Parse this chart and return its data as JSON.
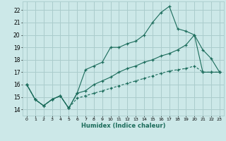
{
  "xlabel": "Humidex (Indice chaleur)",
  "bg_color": "#cce8e8",
  "grid_color": "#aacccc",
  "line_color": "#1a6b5a",
  "xlim": [
    -0.5,
    23.5
  ],
  "ylim": [
    13.5,
    22.7
  ],
  "yticks": [
    14,
    15,
    16,
    17,
    18,
    19,
    20,
    21,
    22
  ],
  "xticks": [
    0,
    1,
    2,
    3,
    4,
    5,
    6,
    7,
    8,
    9,
    10,
    11,
    12,
    13,
    14,
    15,
    16,
    17,
    18,
    19,
    20,
    21,
    22,
    23
  ],
  "line1_x": [
    0,
    1,
    2,
    3,
    4,
    5,
    6,
    7,
    8,
    9,
    10,
    11,
    12,
    13,
    14,
    15,
    16,
    17,
    18,
    19,
    20,
    21,
    22,
    23
  ],
  "line1_y": [
    16.0,
    14.8,
    14.3,
    14.8,
    15.1,
    14.1,
    15.3,
    17.2,
    17.5,
    17.8,
    19.0,
    19.0,
    19.3,
    19.5,
    20.0,
    21.0,
    21.8,
    22.3,
    20.5,
    20.3,
    20.0,
    18.8,
    18.1,
    17.0
  ],
  "line2_x": [
    0,
    1,
    2,
    3,
    4,
    5,
    6,
    7,
    8,
    9,
    10,
    11,
    12,
    13,
    14,
    15,
    16,
    17,
    18,
    19,
    20,
    21,
    22,
    23
  ],
  "line2_y": [
    16.0,
    14.8,
    14.3,
    14.8,
    15.1,
    14.1,
    15.3,
    15.5,
    16.0,
    16.3,
    16.6,
    17.0,
    17.3,
    17.5,
    17.8,
    18.0,
    18.3,
    18.5,
    18.8,
    19.2,
    20.0,
    17.0,
    17.0,
    17.0
  ],
  "line3_x": [
    0,
    1,
    2,
    3,
    4,
    5,
    6,
    7,
    8,
    9,
    10,
    11,
    12,
    13,
    14,
    15,
    16,
    17,
    18,
    19,
    20,
    21,
    22,
    23
  ],
  "line3_y": [
    16.0,
    14.8,
    14.3,
    14.8,
    15.1,
    14.1,
    14.9,
    15.1,
    15.3,
    15.5,
    15.7,
    15.9,
    16.1,
    16.3,
    16.5,
    16.7,
    16.9,
    17.1,
    17.2,
    17.3,
    17.5,
    17.0,
    17.0,
    17.0
  ]
}
